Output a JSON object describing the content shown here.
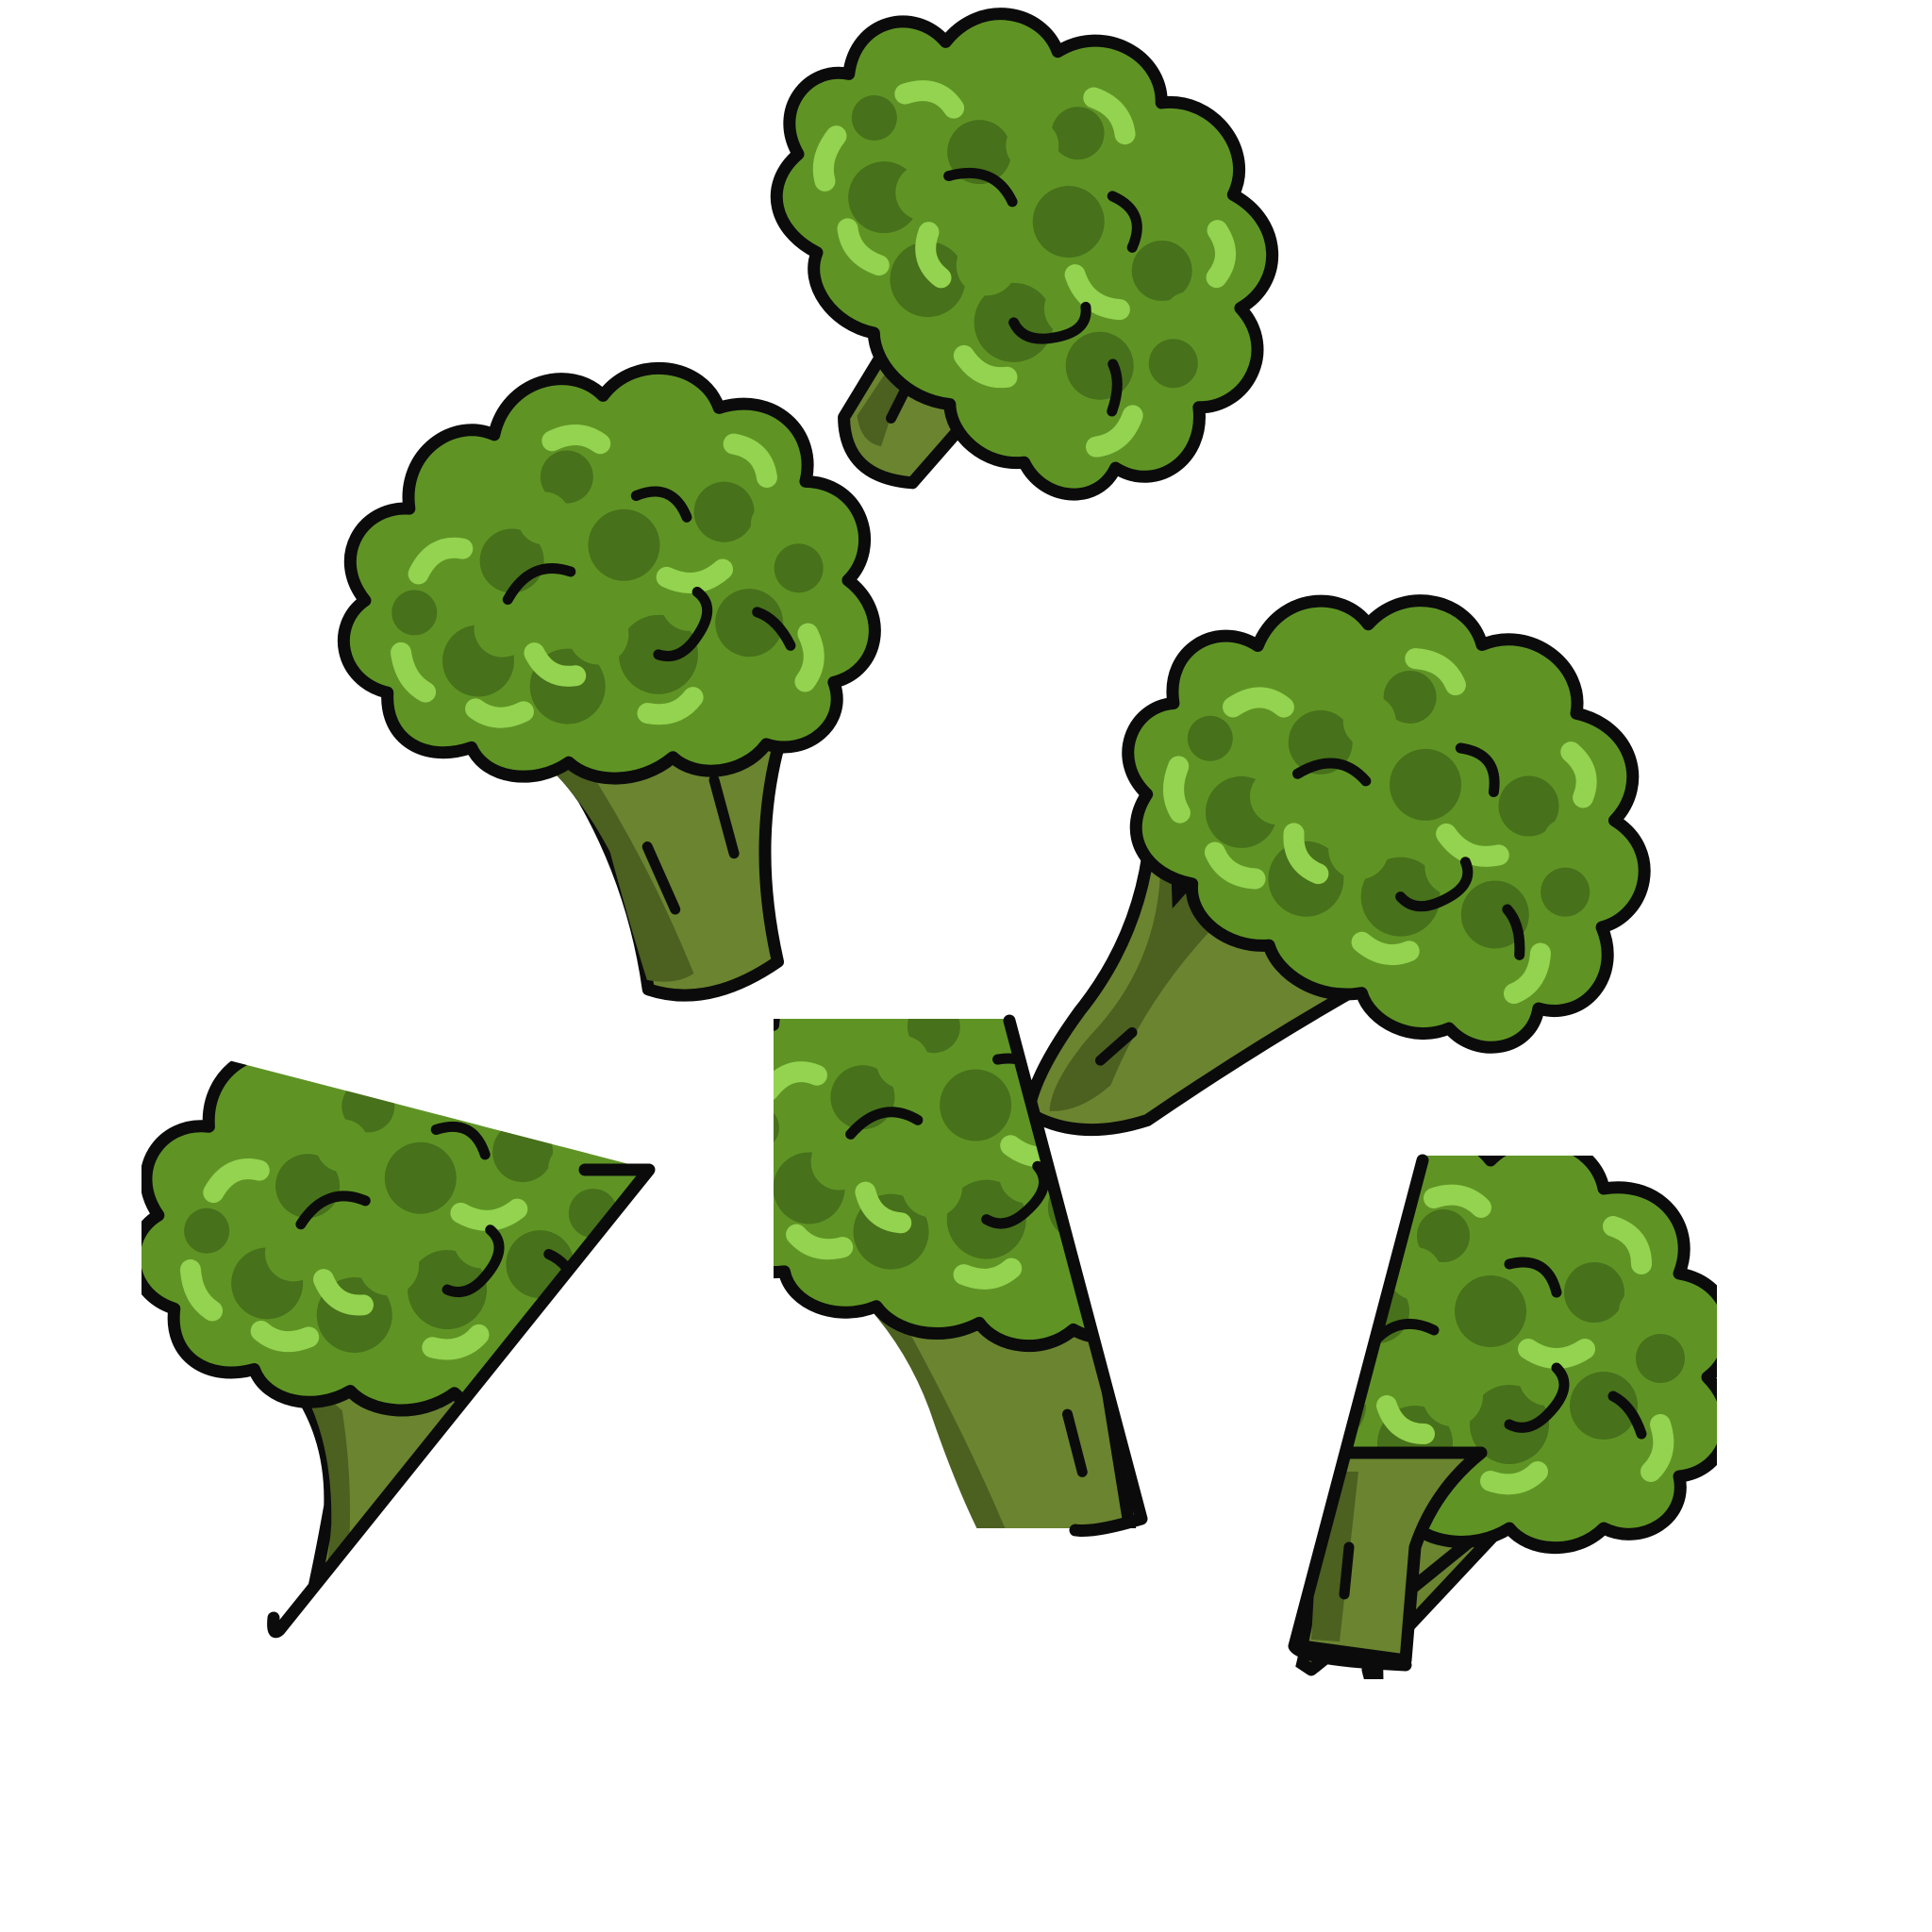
{
  "colors": {
    "background": "#ffffff",
    "outline": "#0b0b0b",
    "floret_base": "#5f9425",
    "floret_shadow": "#47711a",
    "floret_highlight": "#93d34f",
    "stem": "#6b8430",
    "stem_shadow": "#4c6020"
  },
  "florets": [
    {
      "name": "broccoli-floret-top",
      "shape": "whole",
      "tilt_deg": 38
    },
    {
      "name": "broccoli-floret-upper-left",
      "shape": "whole",
      "tilt_deg": -8
    },
    {
      "name": "broccoli-floret-middle-right",
      "shape": "whole",
      "tilt_deg": 22
    },
    {
      "name": "broccoli-floret-lower-left",
      "shape": "cut-diagonal",
      "tilt_deg": 0
    },
    {
      "name": "broccoli-floret-lower-middle",
      "shape": "cut-vertical",
      "tilt_deg": 0
    },
    {
      "name": "broccoli-floret-lower-right",
      "shape": "cut-vertical",
      "tilt_deg": 0
    }
  ]
}
